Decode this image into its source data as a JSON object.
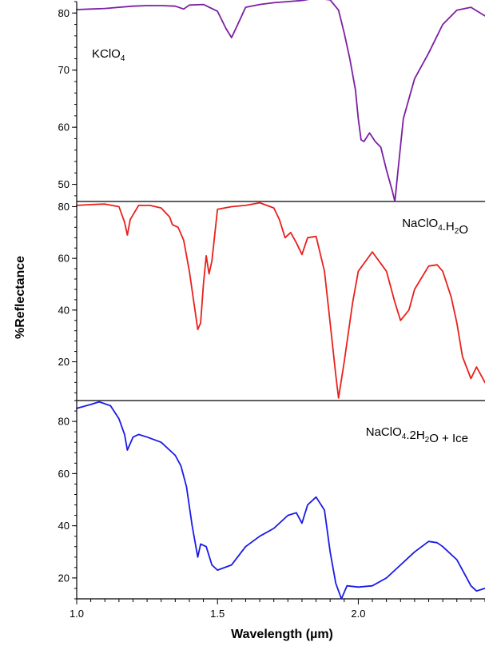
{
  "chart_data": {
    "type": "line",
    "xlabel": "Wavelength (µm)",
    "ylabel": "%Reflectance",
    "xlim": [
      1.0,
      2.45
    ],
    "xticks": [
      1.0,
      1.5,
      2.0
    ],
    "xtick_labels": [
      "1.0",
      "1.5",
      "2.0"
    ],
    "grid": false,
    "legend": "none",
    "panels": [
      {
        "label": "KClO4",
        "label_parts": [
          {
            "t": "KClO"
          },
          {
            "t": "4",
            "sub": true
          }
        ],
        "color": "#7b1fa2",
        "ylim": [
          47,
          82
        ],
        "yticks": [
          50,
          60,
          70,
          80
        ],
        "series": [
          {
            "x": [
              1.0,
              1.05,
              1.1,
              1.15,
              1.2,
              1.25,
              1.3,
              1.35,
              1.38,
              1.4,
              1.45,
              1.5,
              1.53,
              1.55,
              1.57,
              1.6,
              1.65,
              1.7,
              1.75,
              1.8,
              1.85,
              1.9,
              1.93,
              1.95,
              1.97,
              1.99,
              2.0,
              2.01,
              2.02,
              2.04,
              2.06,
              2.08,
              2.1,
              2.12,
              2.13,
              2.14,
              2.16,
              2.2,
              2.25,
              2.3,
              2.35,
              2.4,
              2.45
            ],
            "y": [
              80.6,
              80.7,
              80.8,
              81.0,
              81.2,
              81.3,
              81.3,
              81.2,
              80.7,
              81.4,
              81.5,
              80.3,
              77.3,
              75.7,
              77.8,
              81.0,
              81.5,
              81.8,
              82.0,
              82.2,
              82.6,
              82.3,
              80.5,
              76.5,
              72.0,
              66.5,
              61.5,
              57.8,
              57.5,
              59.0,
              57.5,
              56.5,
              52.5,
              49.0,
              47.0,
              52.0,
              61.5,
              68.5,
              73.0,
              78.0,
              80.5,
              81.0,
              79.5
            ]
          }
        ]
      },
      {
        "label": "NaClO4.H2O",
        "label_parts": [
          {
            "t": "NaClO"
          },
          {
            "t": "4",
            "sub": true
          },
          {
            "t": ".H"
          },
          {
            "t": "2",
            "sub": true
          },
          {
            "t": "O"
          }
        ],
        "color": "#e8201c",
        "ylim": [
          5,
          82
        ],
        "yticks": [
          20,
          40,
          60,
          80
        ],
        "series": [
          {
            "x": [
              1.0,
              1.05,
              1.1,
              1.15,
              1.17,
              1.18,
              1.19,
              1.22,
              1.26,
              1.3,
              1.33,
              1.34,
              1.36,
              1.38,
              1.4,
              1.42,
              1.43,
              1.44,
              1.45,
              1.46,
              1.47,
              1.48,
              1.5,
              1.55,
              1.6,
              1.65,
              1.7,
              1.72,
              1.74,
              1.76,
              1.78,
              1.8,
              1.82,
              1.85,
              1.88,
              1.9,
              1.92,
              1.93,
              1.95,
              1.98,
              2.0,
              2.05,
              2.1,
              2.13,
              2.15,
              2.18,
              2.2,
              2.25,
              2.28,
              2.3,
              2.33,
              2.35,
              2.37,
              2.4,
              2.42,
              2.45
            ],
            "y": [
              80.5,
              80.8,
              81.0,
              80.0,
              74.0,
              69.0,
              75.0,
              80.5,
              80.5,
              79.5,
              76.0,
              73.0,
              72.0,
              67.0,
              55.0,
              40.0,
              32.5,
              35.0,
              50.0,
              61.0,
              54.0,
              59.0,
              79.0,
              80.0,
              80.5,
              81.5,
              79.5,
              75.0,
              68.0,
              70.0,
              66.0,
              61.5,
              68.0,
              68.5,
              55.0,
              35.0,
              15.0,
              6.0,
              20.0,
              43.0,
              55.0,
              62.5,
              55.0,
              43.0,
              36.0,
              40.0,
              48.0,
              57.0,
              57.5,
              55.0,
              45.0,
              35.0,
              22.0,
              13.5,
              18.0,
              12.0
            ]
          }
        ]
      },
      {
        "label": "NaClO4.2H2O + Ice",
        "label_parts": [
          {
            "t": "NaClO"
          },
          {
            "t": "4",
            "sub": true
          },
          {
            "t": ".2H"
          },
          {
            "t": "2",
            "sub": true
          },
          {
            "t": "O + Ice"
          }
        ],
        "color": "#1a1ae6",
        "ylim": [
          12,
          88
        ],
        "yticks": [
          20,
          40,
          60,
          80
        ],
        "series": [
          {
            "x": [
              1.0,
              1.05,
              1.08,
              1.12,
              1.15,
              1.17,
              1.18,
              1.2,
              1.22,
              1.25,
              1.3,
              1.33,
              1.35,
              1.37,
              1.39,
              1.41,
              1.43,
              1.44,
              1.46,
              1.48,
              1.5,
              1.55,
              1.6,
              1.65,
              1.7,
              1.75,
              1.78,
              1.8,
              1.82,
              1.85,
              1.88,
              1.9,
              1.92,
              1.94,
              1.96,
              2.0,
              2.05,
              2.1,
              2.15,
              2.2,
              2.25,
              2.28,
              2.3,
              2.35,
              2.4,
              2.42,
              2.45
            ],
            "y": [
              85.0,
              86.5,
              87.5,
              86.0,
              81.0,
              75.0,
              69.0,
              74.0,
              75.0,
              74.0,
              72.0,
              69.0,
              67.0,
              63.0,
              55.0,
              40.0,
              28.0,
              33.0,
              32.0,
              25.0,
              23.0,
              25.0,
              32.0,
              36.0,
              39.0,
              44.0,
              45.0,
              41.0,
              48.0,
              51.0,
              46.0,
              30.0,
              18.0,
              12.0,
              17.0,
              16.5,
              17.0,
              20.0,
              25.0,
              30.0,
              34.0,
              33.5,
              32.0,
              27.0,
              17.0,
              15.0,
              16.0
            ]
          }
        ]
      }
    ]
  }
}
